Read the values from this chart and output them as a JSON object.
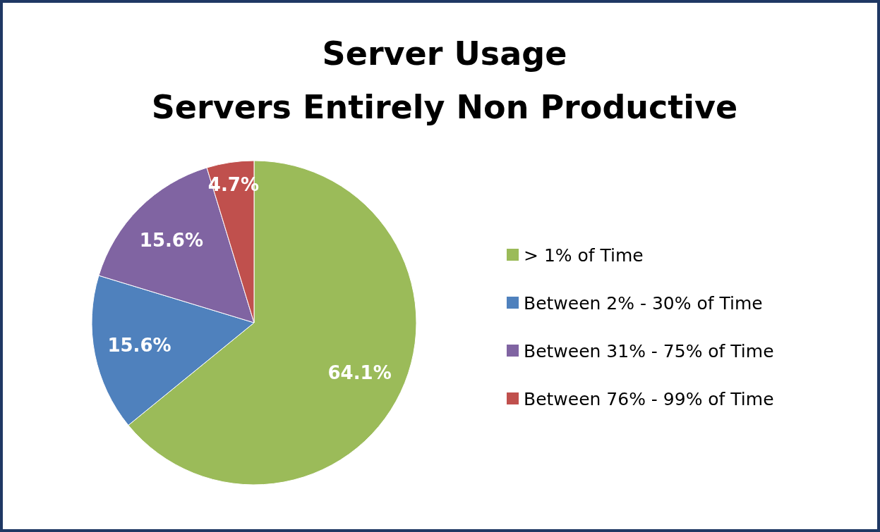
{
  "chart_data": {
    "type": "pie",
    "title": "Server Usage",
    "subtitle": "Servers Entirely Non Productive",
    "categories": [
      "> 1% of Time",
      "Between 2% - 30% of Time",
      "Between 31% - 75% of Time",
      "Between 76% - 99% of Time"
    ],
    "values": [
      64.1,
      15.6,
      15.6,
      4.7
    ],
    "colors": [
      "#9bbb59",
      "#4f81bd",
      "#8064a2",
      "#c0504d"
    ],
    "value_labels": [
      "64.1%",
      "15.6%",
      "15.6%",
      "4.7%"
    ],
    "legend": "right"
  }
}
